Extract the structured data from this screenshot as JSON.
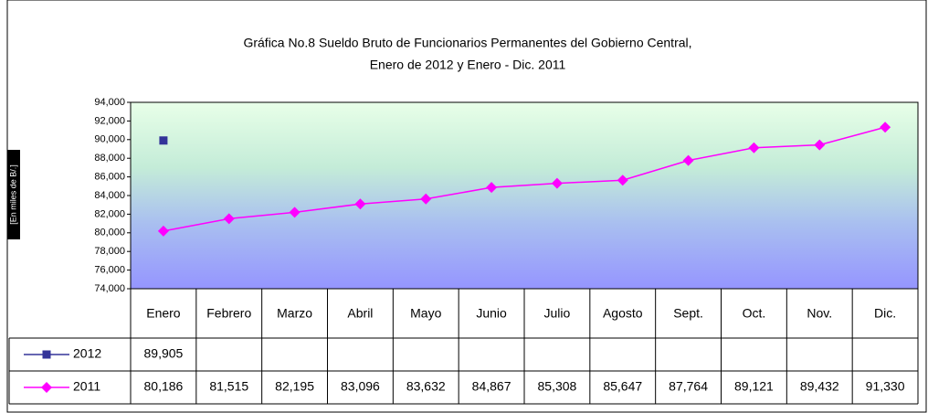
{
  "chart_data": {
    "type": "line",
    "title": [
      "Gráfica No.8 Sueldo Bruto de Funcionarios Permanentes del Gobierno Central,",
      "Enero de 2012 y Enero - Dic. 2011"
    ],
    "y_label": "[En miles de B/.]",
    "categories": [
      "Enero",
      "Febrero",
      "Marzo",
      "Abril",
      "Mayo",
      "Junio",
      "Julio",
      "Agosto",
      "Sept.",
      "Oct.",
      "Nov.",
      "Dic."
    ],
    "series": [
      {
        "name": "2012",
        "color": "#333399",
        "marker": "square",
        "values": [
          89905,
          null,
          null,
          null,
          null,
          null,
          null,
          null,
          null,
          null,
          null,
          null
        ],
        "value_labels": [
          "89,905",
          null,
          null,
          null,
          null,
          null,
          null,
          null,
          null,
          null,
          null,
          null
        ]
      },
      {
        "name": "2011",
        "color": "#ff00ff",
        "marker": "diamond",
        "values": [
          80186,
          81515,
          82195,
          83096,
          83632,
          84867,
          85308,
          85647,
          87764,
          89121,
          89432,
          91330
        ],
        "value_labels": [
          "80,186",
          "81,515",
          "82,195",
          "83,096",
          "83,632",
          "84,867",
          "85,308",
          "85,647",
          "87,764",
          "89,121",
          "89,432",
          "91,330"
        ]
      }
    ],
    "ylim": [
      74000,
      94000
    ],
    "yticks": [
      {
        "value": 74000,
        "label": "74,000"
      },
      {
        "value": 76000,
        "label": "76,000"
      },
      {
        "value": 78000,
        "label": "78,000"
      },
      {
        "value": 80000,
        "label": "80,000"
      },
      {
        "value": 82000,
        "label": "82,000"
      },
      {
        "value": 84000,
        "label": "84,000"
      },
      {
        "value": 86000,
        "label": "86,000"
      },
      {
        "value": 88000,
        "label": "88,000"
      },
      {
        "value": 90000,
        "label": "90,000"
      },
      {
        "value": 92000,
        "label": "92,000"
      },
      {
        "value": 94000,
        "label": "94,000"
      }
    ],
    "grid": false
  }
}
